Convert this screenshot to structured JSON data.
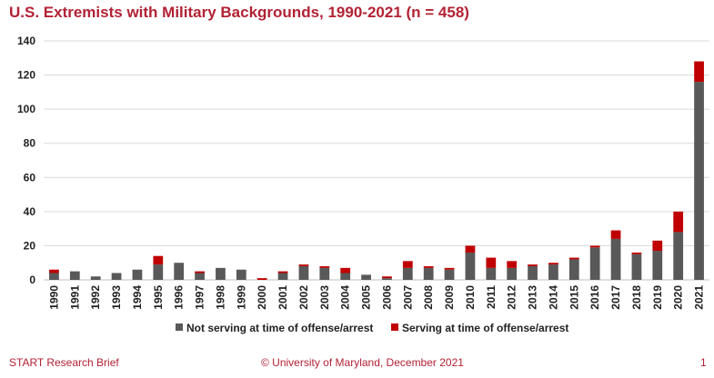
{
  "title": "U.S. Extremists with Military Backgrounds, 1990-2021 (n = 458)",
  "footer": {
    "left": "START Research Brief",
    "center": "© University of Maryland, December 2021",
    "page": "1"
  },
  "colors": {
    "title": "#b22234",
    "not_serving": "#595959",
    "serving": "#c00000",
    "grid": "#d9d9d9"
  },
  "chart_data": {
    "type": "bar",
    "stacked": true,
    "title": "U.S. Extremists with Military Backgrounds, 1990-2021 (n = 458)",
    "categories": [
      "1990",
      "1991",
      "1992",
      "1993",
      "1994",
      "1995",
      "1996",
      "1997",
      "1998",
      "1999",
      "2000",
      "2001",
      "2002",
      "2003",
      "2004",
      "2005",
      "2006",
      "2007",
      "2008",
      "2009",
      "2010",
      "2011",
      "2012",
      "2013",
      "2014",
      "2015",
      "2016",
      "2017",
      "2018",
      "2019",
      "2020",
      "2021"
    ],
    "series": [
      {
        "name": "Not serving at time of offense/arrest",
        "values": [
          4,
          5,
          2,
          4,
          6,
          9,
          10,
          4,
          7,
          6,
          0,
          4,
          8,
          7,
          4,
          3,
          1,
          7,
          7,
          6,
          16,
          7,
          7,
          8,
          9,
          12,
          19,
          24,
          15,
          17,
          28,
          116
        ]
      },
      {
        "name": "Serving at time of offense/arrest",
        "values": [
          2,
          0,
          0,
          0,
          0,
          5,
          0,
          1,
          0,
          0,
          1,
          1,
          1,
          1,
          3,
          0,
          1,
          4,
          1,
          1,
          4,
          6,
          4,
          1,
          1,
          1,
          1,
          5,
          1,
          6,
          12,
          12
        ]
      }
    ],
    "ylim": [
      0,
      140
    ],
    "yticks": [
      0,
      20,
      40,
      60,
      80,
      100,
      120,
      140
    ],
    "grid": true,
    "legend_position": "bottom"
  }
}
